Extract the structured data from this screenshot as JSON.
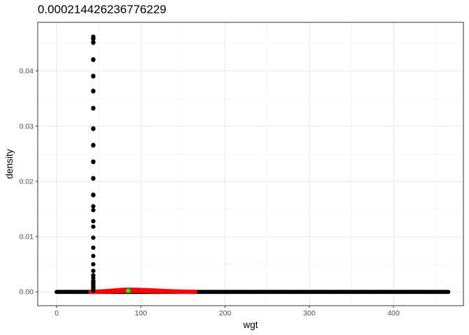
{
  "title": "0.000214426236776229",
  "chart_data": {
    "type": "scatter",
    "title": "0.000214426236776229",
    "xlabel": "wgt",
    "ylabel": "density",
    "xlim": [
      -22.5,
      483
    ],
    "ylim": [
      -0.0025,
      0.0488
    ],
    "xticks": [
      0,
      100,
      200,
      300,
      400
    ],
    "yticks": [
      0.0,
      0.01,
      0.02,
      0.03,
      0.04
    ],
    "xtick_labels": [
      "0",
      "100",
      "200",
      "300",
      "400"
    ],
    "ytick_labels": [
      "0.00",
      "0.01",
      "0.02",
      "0.03",
      "0.04"
    ],
    "grid": true,
    "series": [
      {
        "color": "#000000",
        "role": "spike-points",
        "x": 43.5,
        "y": [
          0.0002,
          0.0004,
          0.0006,
          0.0008,
          0.001,
          0.0012,
          0.0014,
          0.0016,
          0.0018,
          0.002,
          0.0025,
          0.003,
          0.0038,
          0.005,
          0.0065,
          0.008,
          0.0098,
          0.0118,
          0.0128,
          0.0148,
          0.0155,
          0.0175,
          0.0176,
          0.0205,
          0.0206,
          0.0235,
          0.0236,
          0.0265,
          0.0266,
          0.0295,
          0.0296,
          0.0332,
          0.0333,
          0.0363,
          0.0364,
          0.039,
          0.0391,
          0.042,
          0.0421,
          0.0451,
          0.0452,
          0.0458,
          0.046,
          0.0462
        ]
      },
      {
        "color": "#000000",
        "role": "baseline-points",
        "x_range": [
          0,
          466
        ],
        "y": 0.0
      },
      {
        "color": "#ff0000",
        "role": "density-band",
        "x_range": [
          40,
          165
        ],
        "peak_x": 85,
        "peak_y": 0.0004
      },
      {
        "color": "#00ff00",
        "role": "highlight-point",
        "x": 85,
        "y": 0.000214426236776229
      }
    ]
  }
}
